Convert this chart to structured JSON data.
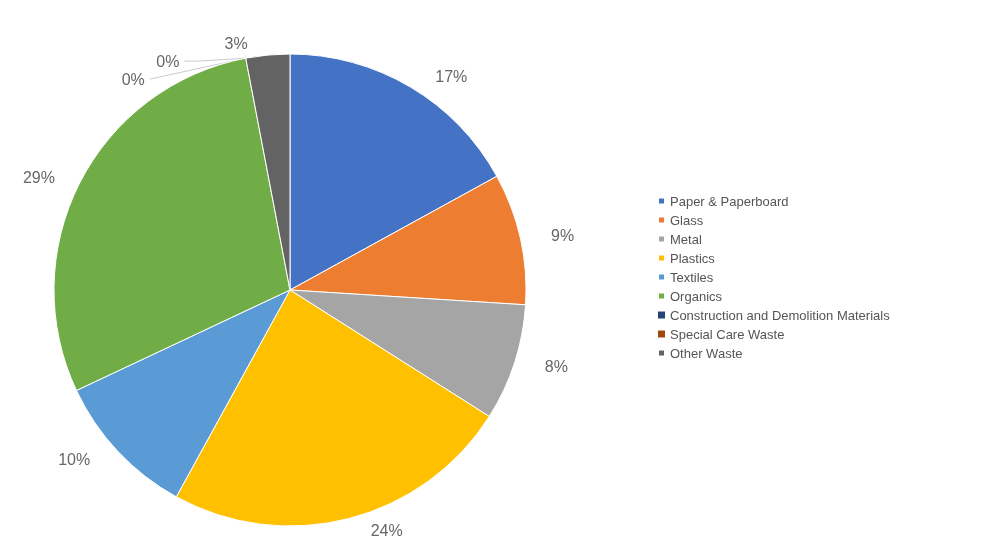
{
  "chart_data": {
    "type": "pie",
    "categories": [
      "Paper & Paperboard",
      "Glass",
      "Metal",
      "Plastics",
      "Textiles",
      "Organics",
      "Construction and Demolition Materials",
      "Special Care Waste",
      "Other Waste"
    ],
    "values": [
      17,
      9,
      8,
      24,
      10,
      29,
      0,
      0,
      3
    ],
    "value_labels": [
      "17%",
      "9%",
      "8%",
      "24%",
      "10%",
      "29%",
      "0%",
      "0%",
      "3%"
    ],
    "colors": [
      "#4472c4",
      "#ed7d31",
      "#a5a5a5",
      "#ffc000",
      "#5b9bd5",
      "#70ad47",
      "#264478",
      "#9e480e",
      "#636363"
    ],
    "legend": "right"
  }
}
